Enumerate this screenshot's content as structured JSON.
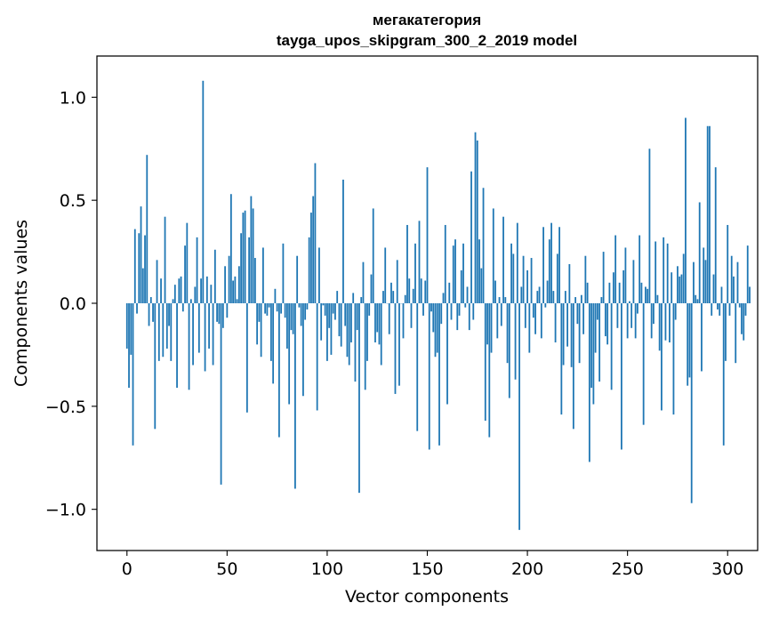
{
  "chart_data": {
    "type": "bar",
    "title": "мегакатегория",
    "subtitle": "tayga_upos_skipgram_300_2_2019 model",
    "xlabel": "Vector components",
    "ylabel": "Components values",
    "xlim": [
      -15,
      315
    ],
    "ylim": [
      -1.2,
      1.2
    ],
    "xticks": [
      0,
      50,
      100,
      150,
      200,
      250,
      300
    ],
    "yticks": [
      -1.0,
      -0.5,
      0.0,
      0.5,
      1.0
    ],
    "xtick_labels": [
      "0",
      "50",
      "100",
      "150",
      "200",
      "250",
      "300"
    ],
    "ytick_labels": [
      "−1.0",
      "−0.5",
      "0.0",
      "0.5",
      "1.0"
    ],
    "grid": false,
    "bar_color": "#1f77b4",
    "values": [
      -0.22,
      -0.41,
      -0.25,
      -0.69,
      0.36,
      -0.05,
      0.34,
      0.47,
      0.17,
      0.33,
      0.72,
      -0.11,
      0.03,
      -0.09,
      -0.61,
      0.21,
      -0.28,
      0.12,
      -0.26,
      0.42,
      -0.22,
      -0.11,
      -0.28,
      0.02,
      0.09,
      -0.41,
      0.12,
      0.13,
      -0.04,
      0.28,
      0.39,
      -0.42,
      0.02,
      -0.3,
      0.08,
      0.32,
      -0.24,
      0.12,
      1.08,
      -0.33,
      0.13,
      -0.22,
      0.09,
      -0.3,
      0.26,
      -0.09,
      -0.1,
      -0.88,
      -0.12,
      0.18,
      -0.07,
      0.23,
      0.53,
      0.11,
      0.13,
      0.02,
      0.18,
      0.34,
      0.44,
      0.45,
      -0.53,
      0.32,
      0.52,
      0.46,
      0.22,
      -0.2,
      -0.09,
      -0.26,
      0.27,
      -0.05,
      -0.06,
      -0.02,
      -0.28,
      -0.39,
      0.07,
      -0.04,
      -0.65,
      -0.05,
      0.29,
      -0.07,
      -0.22,
      -0.49,
      -0.13,
      -0.15,
      -0.9,
      0.23,
      -0.02,
      -0.11,
      -0.45,
      -0.08,
      -0.03,
      0.32,
      0.44,
      0.52,
      0.68,
      -0.52,
      0.27,
      -0.18,
      -0.01,
      -0.06,
      -0.28,
      -0.12,
      -0.25,
      -0.05,
      -0.08,
      0.06,
      -0.16,
      -0.21,
      0.6,
      -0.11,
      -0.26,
      -0.3,
      -0.19,
      0.05,
      -0.38,
      -0.13,
      -0.92,
      0.03,
      0.2,
      -0.42,
      -0.28,
      -0.06,
      0.14,
      0.46,
      -0.19,
      -0.14,
      -0.2,
      -0.3,
      0.06,
      0.27,
      0.0,
      -0.15,
      0.1,
      0.06,
      -0.44,
      0.21,
      -0.4,
      0.0,
      -0.17,
      0.04,
      0.38,
      0.12,
      -0.12,
      0.07,
      0.29,
      -0.62,
      0.4,
      0.12,
      -0.06,
      0.11,
      0.66,
      -0.71,
      -0.04,
      -0.14,
      -0.26,
      -0.24,
      -0.69,
      -0.1,
      0.05,
      0.38,
      -0.49,
      0.1,
      -0.08,
      0.28,
      0.31,
      -0.13,
      -0.06,
      0.16,
      0.29,
      -0.02,
      0.08,
      -0.13,
      0.64,
      -0.08,
      0.83,
      0.79,
      0.31,
      0.17,
      0.56,
      -0.57,
      -0.2,
      -0.65,
      -0.24,
      0.46,
      0.11,
      -0.17,
      0.03,
      -0.11,
      0.42,
      0.03,
      -0.29,
      -0.46,
      0.29,
      0.24,
      -0.37,
      0.39,
      -1.1,
      0.08,
      0.23,
      -0.12,
      0.16,
      -0.24,
      0.22,
      -0.07,
      -0.15,
      0.06,
      0.08,
      -0.17,
      0.37,
      -0.02,
      0.11,
      0.31,
      0.39,
      0.06,
      -0.19,
      0.24,
      0.37,
      -0.54,
      -0.3,
      0.06,
      -0.21,
      0.19,
      -0.31,
      -0.61,
      0.03,
      -0.1,
      -0.29,
      0.04,
      -0.15,
      0.23,
      0.1,
      -0.77,
      -0.41,
      -0.49,
      -0.24,
      -0.08,
      -0.38,
      0.03,
      0.25,
      -0.16,
      -0.2,
      0.1,
      -0.42,
      0.15,
      0.33,
      -0.12,
      0.1,
      -0.71,
      0.16,
      0.27,
      -0.17,
      0.01,
      -0.12,
      0.21,
      -0.17,
      -0.05,
      0.33,
      0.1,
      -0.59,
      0.08,
      0.07,
      0.75,
      -0.17,
      -0.1,
      0.3,
      0.04,
      -0.23,
      -0.52,
      0.32,
      -0.18,
      0.29,
      -0.19,
      0.15,
      -0.54,
      -0.08,
      0.18,
      0.13,
      0.14,
      0.24,
      0.9,
      -0.4,
      -0.36,
      -0.97,
      0.2,
      0.04,
      0.02,
      0.49,
      -0.33,
      0.27,
      0.21,
      0.86,
      0.86,
      -0.06,
      0.14,
      0.66,
      -0.03,
      -0.06,
      0.08,
      -0.69,
      -0.28,
      0.38,
      -0.06,
      0.23,
      0.13,
      -0.29,
      0.2,
      -0.02,
      -0.15,
      -0.18,
      -0.06,
      0.28,
      0.08
    ]
  }
}
